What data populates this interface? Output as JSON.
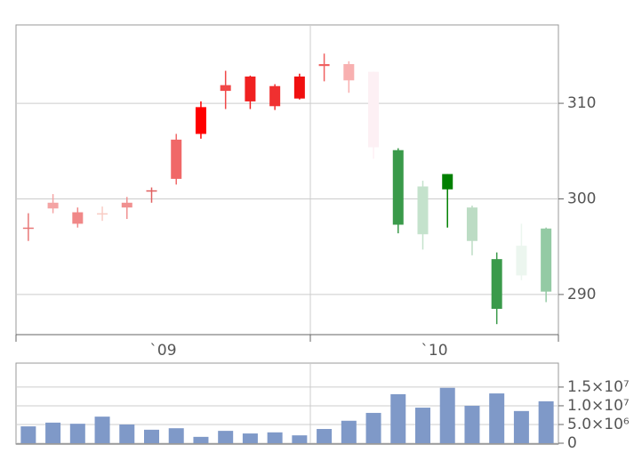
{
  "chart_data": [
    {
      "type": "candlestick",
      "categories": [
        null,
        null,
        null,
        null,
        null,
        null,
        null,
        null,
        null,
        null,
        null,
        null,
        null,
        null,
        null,
        null,
        null,
        null,
        null,
        null,
        null,
        null
      ],
      "open": [
        296.9,
        299.0,
        298.6,
        298.4,
        299.1,
        300.8,
        302.1,
        306.8,
        311.3,
        310.2,
        309.7,
        310.5,
        313.9,
        312.4,
        305.4,
        305.1,
        301.3,
        302.6,
        299.1,
        293.7,
        295.1,
        296.9
      ],
      "high": [
        298.5,
        300.5,
        299.1,
        299.2,
        300.2,
        301.2,
        306.8,
        310.2,
        313.4,
        312.9,
        312.0,
        313.1,
        315.2,
        314.4,
        313.3,
        305.3,
        301.9,
        302.6,
        299.3,
        294.4,
        297.4,
        297.0
      ],
      "low": [
        295.6,
        298.5,
        297.0,
        297.7,
        297.9,
        299.6,
        301.5,
        306.3,
        309.4,
        309.4,
        309.3,
        310.4,
        312.3,
        311.1,
        304.2,
        296.4,
        294.7,
        297.0,
        294.1,
        286.9,
        291.5,
        289.2
      ],
      "close": [
        297.0,
        299.6,
        297.4,
        298.5,
        299.6,
        300.9,
        306.2,
        309.6,
        311.9,
        312.8,
        311.8,
        312.8,
        314.1,
        314.1,
        313.3,
        297.3,
        296.3,
        301.0,
        295.6,
        288.5,
        292.0,
        290.3
      ],
      "colors": [
        "#e87878",
        "#f4a4a4",
        "#f08888",
        "#f8ccc4",
        "#f09090",
        "#e06060",
        "#f06868",
        "#ff0000",
        "#f04848",
        "#f02020",
        "#f03030",
        "#f01010",
        "#f06060",
        "#f8b0b0",
        "#fdf0f4",
        "#3a9a4a",
        "#c4e2cc",
        "#008000",
        "#bcdcc4",
        "#3a9a4a",
        "#ecf6ef",
        "#94caa4"
      ],
      "xtick_labels": [
        "`09",
        "`10"
      ],
      "ylim": [
        285.8,
        318.2
      ],
      "yticks": [
        290,
        300,
        310
      ],
      "grid": true
    },
    {
      "type": "bar",
      "values": [
        4500000,
        5500000,
        5200000,
        7100000,
        5000000,
        3600000,
        4000000,
        1700000,
        3300000,
        2600000,
        2900000,
        2100000,
        3800000,
        6000000,
        8100000,
        13100000,
        9500000,
        14800000,
        10000000,
        13300000,
        8600000,
        11200000
      ],
      "color": "#7f99c8",
      "ylim": [
        0,
        21400000
      ],
      "yticks": [
        0,
        {
          "value": 5000000,
          "label": "5.0×10⁶"
        },
        {
          "value": 10000000,
          "label": "1.0×10⁷"
        },
        {
          "value": 15000000,
          "label": "1.5×10⁷"
        }
      ],
      "grid": true
    }
  ]
}
